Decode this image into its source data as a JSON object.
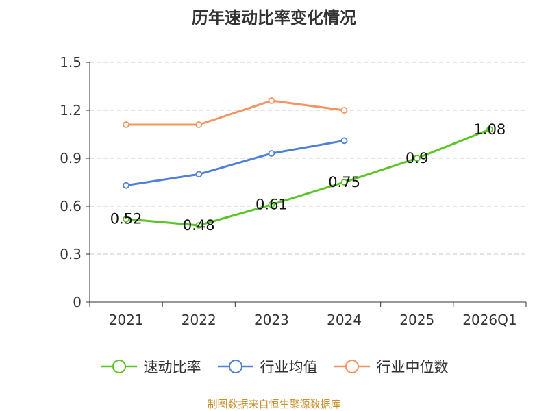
{
  "chart_data": {
    "type": "line",
    "title": "历年速动比率变化情况",
    "categories": [
      "2021",
      "2022",
      "2023",
      "2024",
      "2025",
      "2026Q1"
    ],
    "y_ticks": [
      "0",
      "0.3",
      "0.6",
      "0.9",
      "1.2",
      "1.5"
    ],
    "ylim": [
      0,
      1.5
    ],
    "grid": true,
    "legend_position": "bottom",
    "series": [
      {
        "name": "速动比率",
        "color": "#5ac426",
        "values": [
          0.52,
          0.48,
          0.61,
          0.75,
          0.9,
          1.08
        ],
        "labels": [
          "0.52",
          "0.48",
          "0.61",
          "0.75",
          "0.9",
          "1.08"
        ],
        "show_labels": true
      },
      {
        "name": "行业均值",
        "color": "#4f81d9",
        "values": [
          0.73,
          0.8,
          0.93,
          1.01,
          null,
          null
        ],
        "show_labels": false
      },
      {
        "name": "行业中位数",
        "color": "#f49461",
        "values": [
          1.11,
          1.11,
          1.26,
          1.2,
          null,
          null
        ],
        "show_labels": false
      }
    ]
  },
  "source_text": "制图数据来自恒生聚源数据库"
}
